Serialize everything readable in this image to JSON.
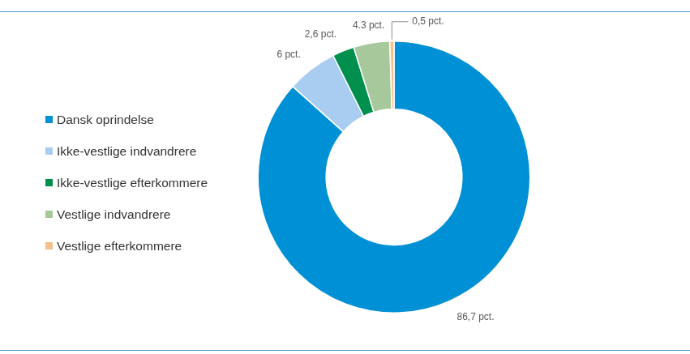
{
  "chart_data": {
    "type": "doughnut",
    "categories": [
      "Dansk oprindelse",
      "Ikke-vestlige indvandrere",
      "Ikke-vestlige efterkommere",
      "Vestlige indvandrere",
      "Vestlige efterkommere"
    ],
    "values": [
      86.7,
      6,
      2.6,
      4.3,
      0.5
    ],
    "value_labels": [
      "86,7 pct.",
      "6 pct.",
      "2,6 pct.",
      "4.3 pct.",
      "0,5 pct."
    ],
    "colors": [
      "#0090d5",
      "#a8cdf0",
      "#008f4c",
      "#a6c89a",
      "#f5c08c"
    ],
    "data_labels": true,
    "legend": "left"
  }
}
